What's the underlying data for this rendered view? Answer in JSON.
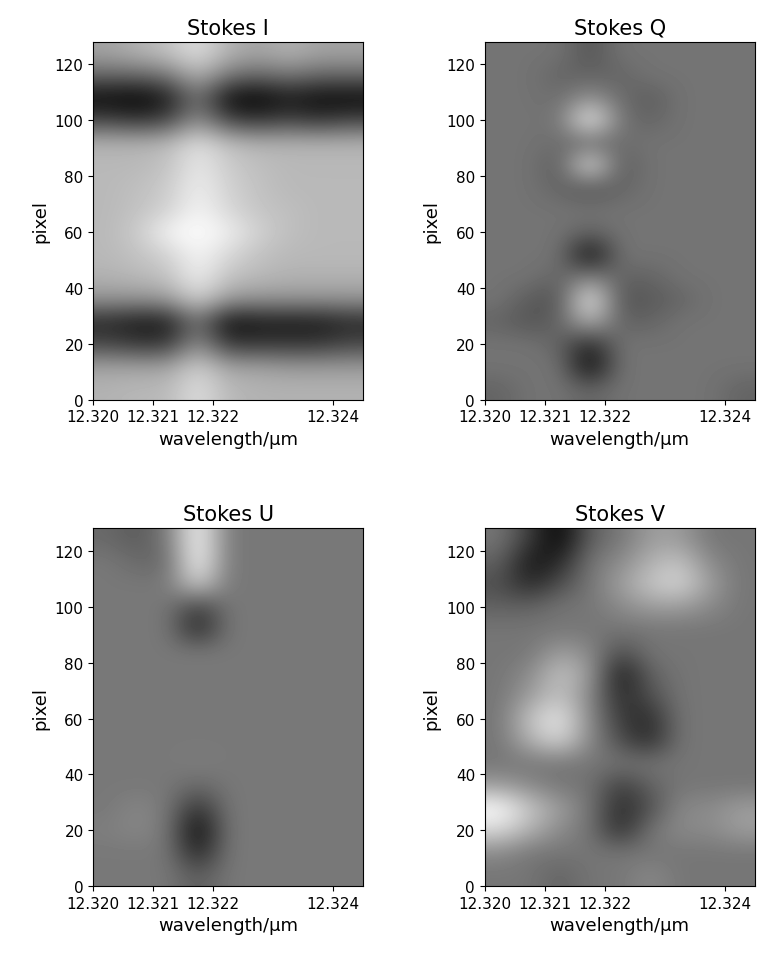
{
  "chart_data": [
    {
      "type": "heatmap",
      "title": "Stokes I",
      "x_label": "wavelength/μm",
      "y_label": "pixel",
      "xlim": [
        12.32,
        12.3245
      ],
      "ylim": [
        0,
        128
      ],
      "xticks": [
        {
          "value": 12.32,
          "label": "12.320"
        },
        {
          "value": 12.321,
          "label": "12.321"
        },
        {
          "value": 12.322,
          "label": "12.322"
        },
        {
          "value": 12.324,
          "label": "12.324"
        }
      ],
      "yticks": [
        0,
        20,
        40,
        60,
        80,
        100,
        120
      ],
      "cells": [
        [
          0.7,
          0.72,
          0.72,
          0.85,
          0.72,
          0.7,
          0.7,
          0.7,
          0.7
        ],
        [
          0.65,
          0.65,
          0.65,
          0.8,
          0.65,
          0.65,
          0.62,
          0.62,
          0.62
        ],
        [
          0.35,
          0.3,
          0.3,
          0.6,
          0.3,
          0.3,
          0.3,
          0.3,
          0.35
        ],
        [
          0.25,
          0.2,
          0.2,
          0.5,
          0.15,
          0.2,
          0.2,
          0.2,
          0.25
        ],
        [
          0.6,
          0.6,
          0.62,
          0.8,
          0.62,
          0.6,
          0.6,
          0.6,
          0.6
        ],
        [
          0.7,
          0.72,
          0.75,
          0.9,
          0.75,
          0.72,
          0.7,
          0.7,
          0.7
        ],
        [
          0.72,
          0.75,
          0.8,
          0.92,
          0.82,
          0.75,
          0.72,
          0.72,
          0.72
        ],
        [
          0.72,
          0.78,
          0.92,
          0.95,
          0.9,
          0.8,
          0.74,
          0.72,
          0.72
        ],
        [
          0.72,
          0.75,
          0.8,
          0.92,
          0.82,
          0.76,
          0.74,
          0.72,
          0.72
        ],
        [
          0.72,
          0.74,
          0.78,
          0.9,
          0.8,
          0.75,
          0.72,
          0.72,
          0.72
        ],
        [
          0.72,
          0.72,
          0.75,
          0.88,
          0.78,
          0.74,
          0.72,
          0.72,
          0.72
        ],
        [
          0.7,
          0.7,
          0.72,
          0.85,
          0.74,
          0.7,
          0.7,
          0.7,
          0.7
        ],
        [
          0.35,
          0.3,
          0.35,
          0.6,
          0.35,
          0.3,
          0.35,
          0.3,
          0.35
        ],
        [
          0.15,
          0.12,
          0.2,
          0.5,
          0.15,
          0.12,
          0.2,
          0.15,
          0.15
        ],
        [
          0.45,
          0.45,
          0.5,
          0.7,
          0.5,
          0.45,
          0.5,
          0.45,
          0.45
        ],
        [
          0.65,
          0.7,
          0.75,
          0.85,
          0.7,
          0.65,
          0.7,
          0.65,
          0.65
        ]
      ]
    },
    {
      "type": "heatmap",
      "title": "Stokes Q",
      "x_label": "wavelength/μm",
      "y_label": "pixel",
      "xlim": [
        12.32,
        12.3245
      ],
      "ylim": [
        0,
        128
      ],
      "xticks": [
        {
          "value": 12.32,
          "label": "12.320"
        },
        {
          "value": 12.321,
          "label": "12.321"
        },
        {
          "value": 12.322,
          "label": "12.322"
        },
        {
          "value": 12.324,
          "label": "12.324"
        }
      ],
      "yticks": [
        0,
        20,
        40,
        60,
        80,
        100,
        120
      ],
      "cells": [
        [
          0.45,
          0.5,
          0.5,
          0.45,
          0.5,
          0.5,
          0.5,
          0.5,
          0.45
        ],
        [
          0.5,
          0.5,
          0.5,
          0.15,
          0.5,
          0.5,
          0.5,
          0.5,
          0.5
        ],
        [
          0.5,
          0.5,
          0.45,
          0.25,
          0.5,
          0.5,
          0.5,
          0.5,
          0.5
        ],
        [
          0.45,
          0.4,
          0.45,
          0.7,
          0.45,
          0.45,
          0.5,
          0.5,
          0.5
        ],
        [
          0.5,
          0.42,
          0.4,
          0.9,
          0.4,
          0.42,
          0.45,
          0.5,
          0.5
        ],
        [
          0.5,
          0.5,
          0.45,
          0.55,
          0.45,
          0.45,
          0.5,
          0.5,
          0.5
        ],
        [
          0.5,
          0.5,
          0.5,
          0.15,
          0.5,
          0.5,
          0.5,
          0.5,
          0.5
        ],
        [
          0.5,
          0.5,
          0.5,
          0.45,
          0.5,
          0.5,
          0.5,
          0.5,
          0.5
        ],
        [
          0.5,
          0.5,
          0.5,
          0.5,
          0.5,
          0.5,
          0.5,
          0.5,
          0.5
        ],
        [
          0.5,
          0.5,
          0.45,
          0.4,
          0.45,
          0.5,
          0.5,
          0.5,
          0.5
        ],
        [
          0.5,
          0.5,
          0.42,
          0.88,
          0.42,
          0.5,
          0.5,
          0.5,
          0.5
        ],
        [
          0.5,
          0.5,
          0.48,
          0.45,
          0.48,
          0.5,
          0.5,
          0.5,
          0.5
        ],
        [
          0.5,
          0.5,
          0.5,
          0.92,
          0.5,
          0.45,
          0.5,
          0.5,
          0.5
        ],
        [
          0.5,
          0.5,
          0.48,
          0.6,
          0.48,
          0.42,
          0.5,
          0.5,
          0.5
        ],
        [
          0.5,
          0.5,
          0.45,
          0.45,
          0.45,
          0.5,
          0.5,
          0.5,
          0.5
        ],
        [
          0.5,
          0.5,
          0.5,
          0.4,
          0.5,
          0.5,
          0.5,
          0.5,
          0.5
        ]
      ]
    },
    {
      "type": "heatmap",
      "title": "Stokes U",
      "x_label": "wavelength/μm",
      "y_label": "pixel",
      "xlim": [
        12.32,
        12.3245
      ],
      "ylim": [
        0,
        128
      ],
      "xticks": [
        {
          "value": 12.32,
          "label": "12.320"
        },
        {
          "value": 12.321,
          "label": "12.321"
        },
        {
          "value": 12.322,
          "label": "12.322"
        },
        {
          "value": 12.324,
          "label": "12.324"
        }
      ],
      "yticks": [
        0,
        20,
        40,
        60,
        80,
        100,
        120
      ],
      "cells": [
        [
          0.5,
          0.5,
          0.5,
          0.4,
          0.5,
          0.5,
          0.5,
          0.5,
          0.5
        ],
        [
          0.5,
          0.5,
          0.5,
          0.2,
          0.5,
          0.5,
          0.5,
          0.5,
          0.5
        ],
        [
          0.52,
          0.55,
          0.5,
          0.1,
          0.5,
          0.5,
          0.5,
          0.5,
          0.5
        ],
        [
          0.5,
          0.55,
          0.5,
          0.25,
          0.5,
          0.5,
          0.5,
          0.5,
          0.5
        ],
        [
          0.5,
          0.5,
          0.5,
          0.45,
          0.5,
          0.5,
          0.5,
          0.5,
          0.5
        ],
        [
          0.5,
          0.5,
          0.5,
          0.52,
          0.5,
          0.5,
          0.5,
          0.5,
          0.5
        ],
        [
          0.5,
          0.5,
          0.5,
          0.5,
          0.5,
          0.5,
          0.5,
          0.5,
          0.5
        ],
        [
          0.5,
          0.5,
          0.5,
          0.5,
          0.5,
          0.5,
          0.5,
          0.5,
          0.5
        ],
        [
          0.5,
          0.5,
          0.5,
          0.5,
          0.5,
          0.5,
          0.5,
          0.5,
          0.5
        ],
        [
          0.5,
          0.5,
          0.5,
          0.5,
          0.5,
          0.5,
          0.5,
          0.5,
          0.5
        ],
        [
          0.5,
          0.5,
          0.5,
          0.5,
          0.5,
          0.5,
          0.5,
          0.5,
          0.5
        ],
        [
          0.5,
          0.5,
          0.5,
          0.2,
          0.5,
          0.5,
          0.5,
          0.5,
          0.5
        ],
        [
          0.5,
          0.5,
          0.5,
          0.3,
          0.5,
          0.5,
          0.5,
          0.5,
          0.5
        ],
        [
          0.5,
          0.5,
          0.5,
          0.8,
          0.5,
          0.5,
          0.5,
          0.5,
          0.5
        ],
        [
          0.5,
          0.45,
          0.45,
          0.95,
          0.5,
          0.5,
          0.5,
          0.5,
          0.5
        ],
        [
          0.45,
          0.4,
          0.5,
          0.95,
          0.5,
          0.5,
          0.5,
          0.5,
          0.5
        ]
      ]
    },
    {
      "type": "heatmap",
      "title": "Stokes V",
      "x_label": "wavelength/μm",
      "y_label": "pixel",
      "xlim": [
        12.32,
        12.3245
      ],
      "ylim": [
        0,
        128
      ],
      "xticks": [
        {
          "value": 12.32,
          "label": "12.320"
        },
        {
          "value": 12.321,
          "label": "12.321"
        },
        {
          "value": 12.322,
          "label": "12.322"
        },
        {
          "value": 12.324,
          "label": "12.324"
        }
      ],
      "yticks": [
        0,
        20,
        40,
        60,
        80,
        100,
        120
      ],
      "cells": [
        [
          0.5,
          0.5,
          0.45,
          0.5,
          0.5,
          0.55,
          0.5,
          0.5,
          0.5
        ],
        [
          0.55,
          0.5,
          0.5,
          0.5,
          0.5,
          0.5,
          0.5,
          0.5,
          0.5
        ],
        [
          0.75,
          0.65,
          0.55,
          0.5,
          0.3,
          0.5,
          0.55,
          0.55,
          0.6
        ],
        [
          0.85,
          0.7,
          0.6,
          0.5,
          0.3,
          0.4,
          0.55,
          0.55,
          0.6
        ],
        [
          0.6,
          0.55,
          0.5,
          0.5,
          0.35,
          0.45,
          0.5,
          0.5,
          0.5
        ],
        [
          0.5,
          0.5,
          0.5,
          0.5,
          0.5,
          0.5,
          0.5,
          0.5,
          0.5
        ],
        [
          0.5,
          0.65,
          0.75,
          0.55,
          0.4,
          0.3,
          0.5,
          0.5,
          0.5
        ],
        [
          0.5,
          0.7,
          0.8,
          0.55,
          0.35,
          0.3,
          0.5,
          0.5,
          0.5
        ],
        [
          0.5,
          0.6,
          0.7,
          0.55,
          0.3,
          0.4,
          0.5,
          0.5,
          0.5
        ],
        [
          0.5,
          0.55,
          0.7,
          0.6,
          0.25,
          0.45,
          0.5,
          0.5,
          0.5
        ],
        [
          0.5,
          0.5,
          0.6,
          0.55,
          0.4,
          0.5,
          0.5,
          0.5,
          0.5
        ],
        [
          0.5,
          0.5,
          0.5,
          0.5,
          0.5,
          0.5,
          0.5,
          0.5,
          0.5
        ],
        [
          0.45,
          0.45,
          0.5,
          0.5,
          0.55,
          0.6,
          0.6,
          0.55,
          0.5
        ],
        [
          0.4,
          0.3,
          0.4,
          0.5,
          0.6,
          0.7,
          0.75,
          0.6,
          0.5
        ],
        [
          0.45,
          0.25,
          0.3,
          0.5,
          0.55,
          0.65,
          0.7,
          0.55,
          0.5
        ],
        [
          0.5,
          0.35,
          0.2,
          0.45,
          0.5,
          0.6,
          0.6,
          0.5,
          0.5
        ]
      ]
    }
  ]
}
